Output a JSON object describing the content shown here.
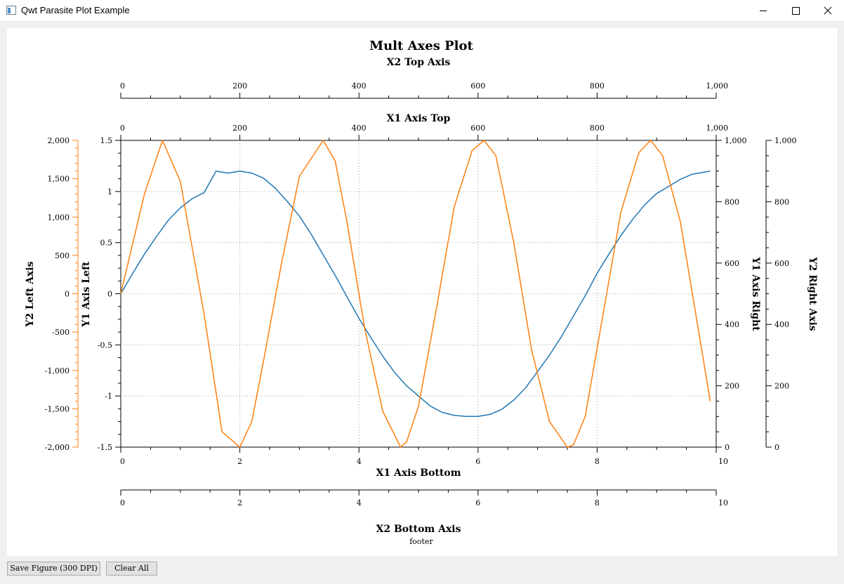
{
  "window": {
    "title": "Qwt Parasite Plot Example"
  },
  "buttons": {
    "save": "Save Figure (300 DPI)",
    "clear": "Clear All"
  },
  "chart_data": {
    "type": "line",
    "title": "Mult Axes Plot",
    "footer": "footer",
    "axes": {
      "x1_bottom": {
        "label": "X1 Axis Bottom",
        "range": [
          0,
          10
        ],
        "ticks": [
          "0",
          "2",
          "4",
          "6",
          "8",
          "10"
        ]
      },
      "x1_top": {
        "label": "X1 Axis Top",
        "range": [
          0,
          1000
        ],
        "ticks": [
          "0",
          "200",
          "400",
          "600",
          "800",
          "1,000"
        ]
      },
      "x2_top": {
        "label": "X2 Top Axis",
        "range": [
          0,
          1000
        ],
        "ticks": [
          "0",
          "200",
          "400",
          "600",
          "800",
          "1,000"
        ]
      },
      "x2_bottom": {
        "label": "X2 Bottom Axis",
        "range": [
          0,
          10
        ],
        "ticks": [
          "0",
          "2",
          "4",
          "6",
          "8",
          "10"
        ]
      },
      "y1_left": {
        "label": "Y1 Axis Left",
        "range": [
          -1.5,
          1.5
        ],
        "ticks": [
          "-1.5",
          "-1",
          "-0.5",
          "0",
          "0.5",
          "1",
          "1.5"
        ]
      },
      "y2_left": {
        "label": "Y2 Left Axis",
        "range": [
          -2000,
          2000
        ],
        "ticks": [
          "-2,000",
          "-1,500",
          "-1,000",
          "-500",
          "0",
          "500",
          "1,000",
          "1,500",
          "2,000"
        ],
        "color": "#ff7f0e"
      },
      "y1_right": {
        "label": "Y1 Axis Right",
        "range": [
          0,
          1000
        ],
        "ticks": [
          "0",
          "200",
          "400",
          "600",
          "800",
          "1,000"
        ]
      },
      "y2_right": {
        "label": "Y2 Right Axis",
        "range": [
          0,
          1000
        ],
        "ticks": [
          "0",
          "200",
          "400",
          "600",
          "800",
          "1,000"
        ]
      }
    },
    "grid": true,
    "series": [
      {
        "color": "#1f77b4",
        "axis": "y1_left",
        "x": [
          0,
          0.2,
          0.4,
          0.6,
          0.8,
          1,
          1.2,
          1.4,
          1.6,
          1.8,
          2,
          2.2,
          2.4,
          2.6,
          2.8,
          3,
          3.2,
          3.4,
          3.6,
          3.8,
          4,
          4.2,
          4.4,
          4.6,
          4.8,
          5,
          5.2,
          5.4,
          5.6,
          5.8,
          6,
          6.2,
          6.4,
          6.6,
          6.8,
          7,
          7.2,
          7.4,
          7.6,
          7.8,
          8,
          8.2,
          8.4,
          8.6,
          8.8,
          9,
          9.2,
          9.4,
          9.6,
          9.8,
          9.9
        ],
        "y": [
          0,
          0.2,
          0.39,
          0.56,
          0.72,
          0.84,
          0.93,
          0.99,
          1.2,
          1.18,
          1.2,
          1.18,
          1.13,
          1.03,
          0.9,
          0.76,
          0.58,
          0.38,
          0.18,
          -0.03,
          -0.24,
          -0.43,
          -0.61,
          -0.77,
          -0.9,
          -1.0,
          -1.1,
          -1.16,
          -1.19,
          -1.2,
          -1.2,
          -1.18,
          -1.13,
          -1.04,
          -0.92,
          -0.76,
          -0.6,
          -0.42,
          -0.22,
          -0.02,
          0.2,
          0.39,
          0.57,
          0.73,
          0.87,
          0.98,
          1.05,
          1.12,
          1.17,
          1.19,
          1.2
        ]
      },
      {
        "color": "#ff7f0e",
        "axis": "y1_left",
        "x": [
          0,
          0.4,
          0.7,
          1.0,
          1.4,
          1.7,
          2.0,
          2.2,
          2.4,
          2.7,
          3.0,
          3.4,
          3.6,
          3.8,
          4.1,
          4.4,
          4.7,
          4.8,
          5.0,
          5.3,
          5.6,
          5.9,
          6.1,
          6.3,
          6.6,
          6.9,
          7.2,
          7.5,
          7.6,
          7.8,
          8.1,
          8.4,
          8.7,
          8.9,
          9.1,
          9.4,
          9.7,
          9.9
        ],
        "y": [
          0,
          0.98,
          1.5,
          1.1,
          -0.2,
          -1.35,
          -1.5,
          -1.25,
          -0.65,
          0.3,
          1.15,
          1.5,
          1.3,
          0.7,
          -0.35,
          -1.15,
          -1.5,
          -1.45,
          -1.1,
          -0.15,
          0.85,
          1.4,
          1.5,
          1.35,
          0.5,
          -0.55,
          -1.25,
          -1.5,
          -1.48,
          -1.2,
          -0.2,
          0.8,
          1.38,
          1.5,
          1.35,
          0.7,
          -0.35,
          -1.05
        ]
      }
    ]
  }
}
